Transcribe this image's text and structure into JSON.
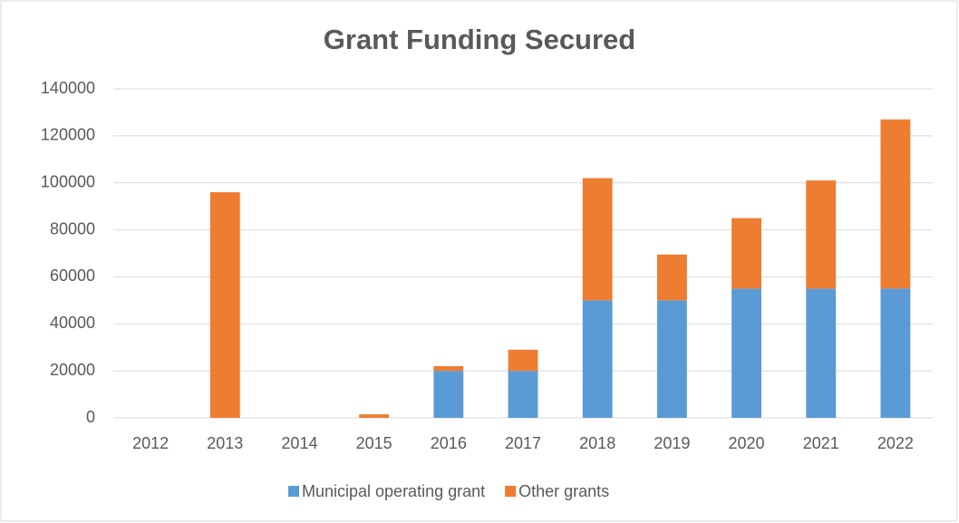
{
  "chart_data": {
    "type": "stacked_bar",
    "title": "Grant Funding Secured",
    "categories": [
      "2012",
      "2013",
      "2014",
      "2015",
      "2016",
      "2017",
      "2018",
      "2019",
      "2020",
      "2021",
      "2022"
    ],
    "series": [
      {
        "name": "Municipal operating grant",
        "color": "#5b9bd5",
        "values": [
          0,
          0,
          0,
          0,
          20000,
          20000,
          50000,
          50000,
          55000,
          55000,
          55000
        ]
      },
      {
        "name": "Other grants",
        "color": "#ed7d31",
        "values": [
          0,
          96000,
          0,
          1500,
          2000,
          9000,
          52000,
          19500,
          30000,
          46000,
          72000
        ]
      }
    ],
    "ylim": [
      0,
      140000
    ],
    "yticks": [
      0,
      20000,
      40000,
      60000,
      80000,
      100000,
      120000,
      140000
    ],
    "grid": true,
    "legend": "bottom"
  }
}
